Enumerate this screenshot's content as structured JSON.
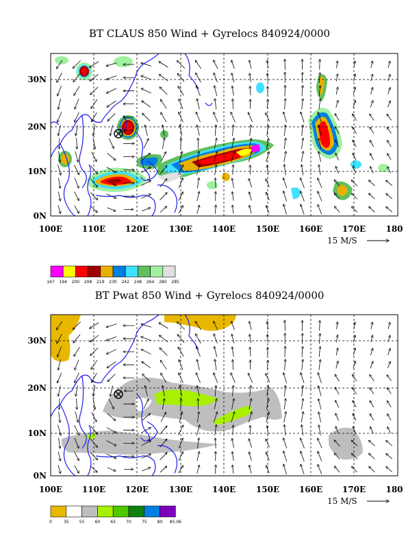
{
  "panels": [
    {
      "title": "BT CLAUS 850 Wind + Gyrelocs 840924/0000",
      "xticks": [
        "100E",
        "110E",
        "120E",
        "130E",
        "140E",
        "150E",
        "160E",
        "170E",
        "180"
      ],
      "yticks": [
        "0N",
        "10N",
        "20N",
        "30N"
      ],
      "scale_label": "15 M/S",
      "colorbar": {
        "colors": [
          "#ff00ff",
          "#ffff00",
          "#ff0000",
          "#a00000",
          "#e8b000",
          "#0080e0",
          "#40e0ff",
          "#60c060",
          "#a0f0a0",
          "#e0e0e0"
        ],
        "labels": [
          "167",
          "194",
          "200",
          "208",
          "219",
          "230",
          "242",
          "248",
          "264",
          "280",
          "285"
        ]
      },
      "gyreloc": {
        "lon": 116,
        "lat": 18.5
      }
    },
    {
      "title": "BT Pwat 850 Wind + Gyrelocs 840924/0000",
      "xticks": [
        "100E",
        "110E",
        "120E",
        "130E",
        "140E",
        "150E",
        "160E",
        "170E",
        "180"
      ],
      "yticks": [
        "0N",
        "10N",
        "20N",
        "30N"
      ],
      "scale_label": "15 M/S",
      "colorbar": {
        "colors": [
          "#e8b800",
          "#ffffff",
          "#bebebe",
          "#a8f000",
          "#50c800",
          "#108010",
          "#0080e0",
          "#8000c0"
        ],
        "labels": [
          "0",
          "35",
          "55",
          "60",
          "65",
          "70",
          "75",
          "80",
          "85.06"
        ]
      },
      "gyreloc": {
        "lon": 116,
        "lat": 18.5
      }
    }
  ]
}
